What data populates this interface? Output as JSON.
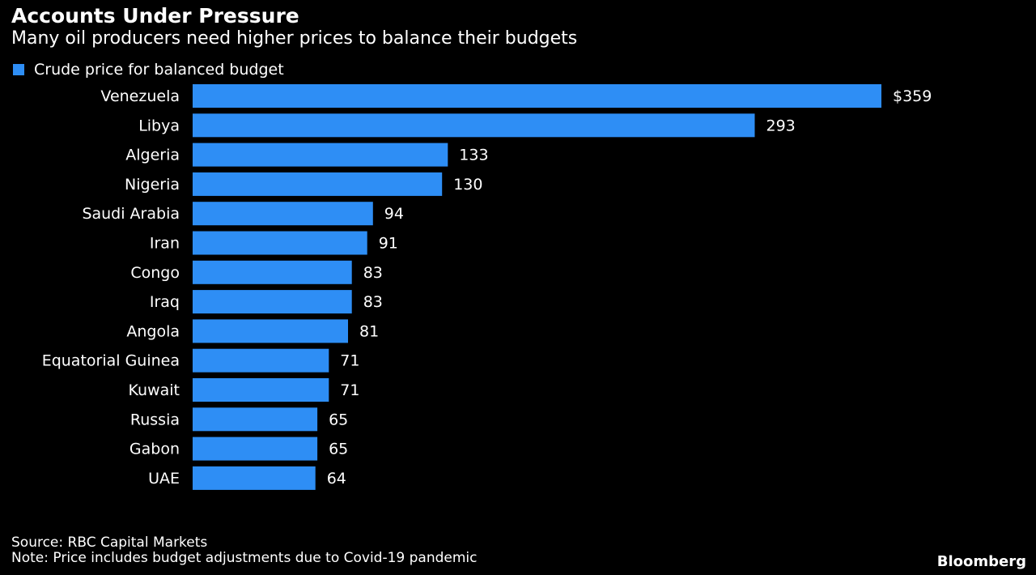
{
  "title": "Accounts Under Pressure",
  "subtitle": "Many oil producers need higher prices to balance their budgets",
  "source": "Source: RBC Capital Markets",
  "note": "Note: Price includes budget adjustments due to Covid-19 pandemic",
  "brand": "Bloomberg",
  "colors": {
    "background": "#000000",
    "bar": "#2e8ef5",
    "text": "#ffffff"
  },
  "chart_data": {
    "type": "bar",
    "orientation": "horizontal",
    "series": [
      {
        "name": "Crude price for balanced budget",
        "values": [
          359,
          293,
          133,
          130,
          94,
          91,
          83,
          83,
          81,
          71,
          71,
          65,
          65,
          64
        ]
      }
    ],
    "categories": [
      "Venezuela",
      "Libya",
      "Algeria",
      "Nigeria",
      "Saudi Arabia",
      "Iran",
      "Congo",
      "Iraq",
      "Angola",
      "Equatorial Guinea",
      "Kuwait",
      "Russia",
      "Gabon",
      "UAE"
    ],
    "data_labels": [
      "$359",
      "293",
      "133",
      "130",
      "94",
      "91",
      "83",
      "83",
      "81",
      "71",
      "71",
      "65",
      "65",
      "64"
    ],
    "xlim": [
      0,
      359
    ],
    "legend_position": "top-left",
    "grid": false
  }
}
